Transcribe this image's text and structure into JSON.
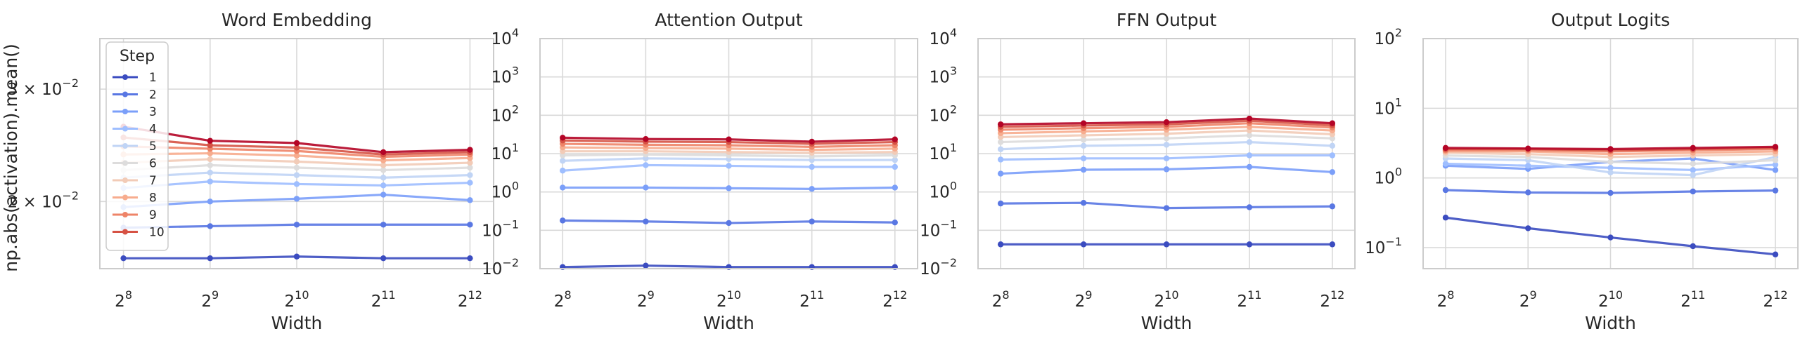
{
  "figure": {
    "ylabel": "np.abs(activation).mean()"
  },
  "legend": {
    "title": "Step",
    "placement": "upper-left of first panel",
    "items": [
      "1",
      "2",
      "3",
      "4",
      "5",
      "6",
      "7",
      "8",
      "9",
      "10"
    ]
  },
  "series_colors": [
    "#3b4cc0",
    "#5977e3",
    "#7b9ff9",
    "#9ebeff",
    "#c0d4f5",
    "#dddcdc",
    "#f2cbb7",
    "#f7ac8e",
    "#ee8468",
    "#d65244",
    "#b40426"
  ],
  "chart_data": [
    {
      "type": "line",
      "title": "Word Embedding",
      "xlabel": "Width",
      "ylabel": "np.abs(activation).mean()",
      "x": [
        "2^8",
        "2^9",
        "2^10",
        "2^11",
        "2^12"
      ],
      "x_tick_base": "2",
      "x_tick_exponents": [
        "8",
        "9",
        "10",
        "11",
        "12"
      ],
      "yscale": "log",
      "ylim": [
        0.0157,
        0.036
      ],
      "y_ticks": [
        {
          "value": 0.02,
          "mantissa": "2 × 10",
          "exponent": "−2"
        },
        {
          "value": 0.03,
          "mantissa": "3 × 10",
          "exponent": "−2"
        }
      ],
      "grid": true,
      "series": [
        {
          "name": "1",
          "values": [
            0.0163,
            0.0163,
            0.0164,
            0.0163,
            0.0163
          ]
        },
        {
          "name": "2",
          "values": [
            0.0182,
            0.0183,
            0.0184,
            0.0184,
            0.0184
          ]
        },
        {
          "name": "3",
          "values": [
            0.0196,
            0.02,
            0.0202,
            0.0205,
            0.0201
          ]
        },
        {
          "name": "4",
          "values": [
            0.021,
            0.0215,
            0.0213,
            0.0212,
            0.0214
          ]
        },
        {
          "name": "5",
          "values": [
            0.0218,
            0.0222,
            0.022,
            0.0218,
            0.022
          ]
        },
        {
          "name": "6",
          "values": [
            0.0224,
            0.0228,
            0.0226,
            0.0224,
            0.0226
          ]
        },
        {
          "name": "7",
          "values": [
            0.023,
            0.0233,
            0.0231,
            0.0228,
            0.023
          ]
        },
        {
          "name": "8",
          "values": [
            0.0237,
            0.0238,
            0.0236,
            0.0232,
            0.0234
          ]
        },
        {
          "name": "9",
          "values": [
            0.0244,
            0.0242,
            0.024,
            0.0235,
            0.0237
          ]
        },
        {
          "name": "10",
          "values": [
            0.0252,
            0.0245,
            0.0243,
            0.0237,
            0.0239
          ]
        },
        {
          "name": "",
          "values": [
            0.0262,
            0.0249,
            0.0247,
            0.0239,
            0.0241
          ]
        }
      ]
    },
    {
      "type": "line",
      "title": "Attention Output",
      "xlabel": "Width",
      "ylabel": "",
      "x": [
        "2^8",
        "2^9",
        "2^10",
        "2^11",
        "2^12"
      ],
      "x_tick_base": "2",
      "x_tick_exponents": [
        "8",
        "9",
        "10",
        "11",
        "12"
      ],
      "yscale": "log",
      "ylim": [
        0.01,
        10000
      ],
      "y_ticks": [
        {
          "value": 0.01,
          "mantissa": "10",
          "exponent": "−2"
        },
        {
          "value": 0.1,
          "mantissa": "10",
          "exponent": "−1"
        },
        {
          "value": 1,
          "mantissa": "10",
          "exponent": "0"
        },
        {
          "value": 10,
          "mantissa": "10",
          "exponent": "1"
        },
        {
          "value": 100,
          "mantissa": "10",
          "exponent": "2"
        },
        {
          "value": 1000,
          "mantissa": "10",
          "exponent": "3"
        },
        {
          "value": 10000,
          "mantissa": "10",
          "exponent": "4"
        }
      ],
      "grid": true,
      "series": [
        {
          "name": "1",
          "values": [
            0.011,
            0.012,
            0.011,
            0.011,
            0.011
          ]
        },
        {
          "name": "2",
          "values": [
            0.18,
            0.17,
            0.155,
            0.17,
            0.16
          ]
        },
        {
          "name": "3",
          "values": [
            1.3,
            1.3,
            1.25,
            1.2,
            1.3
          ]
        },
        {
          "name": "4",
          "values": [
            3.6,
            5.0,
            4.8,
            4.5,
            4.5
          ]
        },
        {
          "name": "5",
          "values": [
            6.5,
            7.5,
            7.2,
            6.8,
            6.8
          ]
        },
        {
          "name": "6",
          "values": [
            9.0,
            9.5,
            9.0,
            8.5,
            9.0
          ]
        },
        {
          "name": "7",
          "values": [
            11.5,
            11.5,
            11.0,
            10.5,
            11.0
          ]
        },
        {
          "name": "8",
          "values": [
            14.5,
            14.0,
            13.5,
            12.5,
            13.5
          ]
        },
        {
          "name": "9",
          "values": [
            18.0,
            17.0,
            16.5,
            15.0,
            16.5
          ]
        },
        {
          "name": "10",
          "values": [
            22.0,
            20.5,
            20.0,
            18.0,
            20.0
          ]
        },
        {
          "name": "",
          "values": [
            26.0,
            24.0,
            23.5,
            20.5,
            23.5
          ]
        }
      ]
    },
    {
      "type": "line",
      "title": "FFN Output",
      "xlabel": "Width",
      "ylabel": "",
      "x": [
        "2^8",
        "2^9",
        "2^10",
        "2^11",
        "2^12"
      ],
      "x_tick_base": "2",
      "x_tick_exponents": [
        "8",
        "9",
        "10",
        "11",
        "12"
      ],
      "yscale": "log",
      "ylim": [
        0.01,
        10000
      ],
      "y_ticks": [
        {
          "value": 0.01,
          "mantissa": "10",
          "exponent": "−2"
        },
        {
          "value": 0.1,
          "mantissa": "10",
          "exponent": "−1"
        },
        {
          "value": 1,
          "mantissa": "10",
          "exponent": "0"
        },
        {
          "value": 10,
          "mantissa": "10",
          "exponent": "1"
        },
        {
          "value": 100,
          "mantissa": "10",
          "exponent": "2"
        },
        {
          "value": 1000,
          "mantissa": "10",
          "exponent": "3"
        },
        {
          "value": 10000,
          "mantissa": "10",
          "exponent": "4"
        }
      ],
      "grid": true,
      "series": [
        {
          "name": "1",
          "values": [
            0.043,
            0.043,
            0.043,
            0.043,
            0.043
          ]
        },
        {
          "name": "2",
          "values": [
            0.5,
            0.52,
            0.38,
            0.4,
            0.42
          ]
        },
        {
          "name": "3",
          "values": [
            3.0,
            3.8,
            3.9,
            4.5,
            3.3
          ]
        },
        {
          "name": "4",
          "values": [
            7.0,
            7.5,
            7.5,
            9.0,
            9.0
          ]
        },
        {
          "name": "5",
          "values": [
            13.0,
            16.0,
            17.0,
            20.0,
            16.0
          ]
        },
        {
          "name": "6",
          "values": [
            20.0,
            23.0,
            25.0,
            30.0,
            25.0
          ]
        },
        {
          "name": "7",
          "values": [
            27.0,
            30.0,
            33.0,
            40.0,
            32.0
          ]
        },
        {
          "name": "8",
          "values": [
            34.0,
            38.0,
            42.0,
            50.0,
            40.0
          ]
        },
        {
          "name": "9",
          "values": [
            42.0,
            46.0,
            50.0,
            62.0,
            48.0
          ]
        },
        {
          "name": "10",
          "values": [
            50.0,
            54.0,
            58.0,
            72.0,
            55.0
          ]
        },
        {
          "name": "",
          "values": [
            58.0,
            62.0,
            66.0,
            82.0,
            62.0
          ]
        }
      ]
    },
    {
      "type": "line",
      "title": "Output Logits",
      "xlabel": "Width",
      "ylabel": "",
      "x": [
        "2^8",
        "2^9",
        "2^10",
        "2^11",
        "2^12"
      ],
      "x_tick_base": "2",
      "x_tick_exponents": [
        "8",
        "9",
        "10",
        "11",
        "12"
      ],
      "yscale": "log",
      "ylim": [
        0.05,
        100
      ],
      "y_ticks": [
        {
          "value": 0.1,
          "mantissa": "10",
          "exponent": "−1"
        },
        {
          "value": 1,
          "mantissa": "10",
          "exponent": "0"
        },
        {
          "value": 10,
          "mantissa": "10",
          "exponent": "1"
        },
        {
          "value": 100,
          "mantissa": "10",
          "exponent": "2"
        }
      ],
      "grid": true,
      "series": [
        {
          "name": "1",
          "values": [
            0.27,
            0.19,
            0.14,
            0.105,
            0.08
          ]
        },
        {
          "name": "2",
          "values": [
            0.67,
            0.62,
            0.61,
            0.64,
            0.66
          ]
        },
        {
          "name": "3",
          "values": [
            1.5,
            1.35,
            1.7,
            1.9,
            1.3
          ]
        },
        {
          "name": "4",
          "values": [
            1.6,
            1.5,
            1.4,
            1.3,
            1.55
          ]
        },
        {
          "name": "5",
          "values": [
            1.9,
            1.8,
            1.2,
            1.1,
            2.0
          ]
        },
        {
          "name": "6",
          "values": [
            2.1,
            2.0,
            1.7,
            1.6,
            1.8
          ]
        },
        {
          "name": "7",
          "values": [
            2.3,
            2.2,
            2.0,
            2.1,
            2.2
          ]
        },
        {
          "name": "8",
          "values": [
            2.4,
            2.4,
            2.2,
            2.3,
            2.4
          ]
        },
        {
          "name": "9",
          "values": [
            2.5,
            2.5,
            2.4,
            2.5,
            2.6
          ]
        },
        {
          "name": "10",
          "values": [
            2.6,
            2.6,
            2.5,
            2.6,
            2.7
          ]
        },
        {
          "name": "",
          "values": [
            2.7,
            2.65,
            2.6,
            2.7,
            2.8
          ]
        }
      ]
    }
  ]
}
